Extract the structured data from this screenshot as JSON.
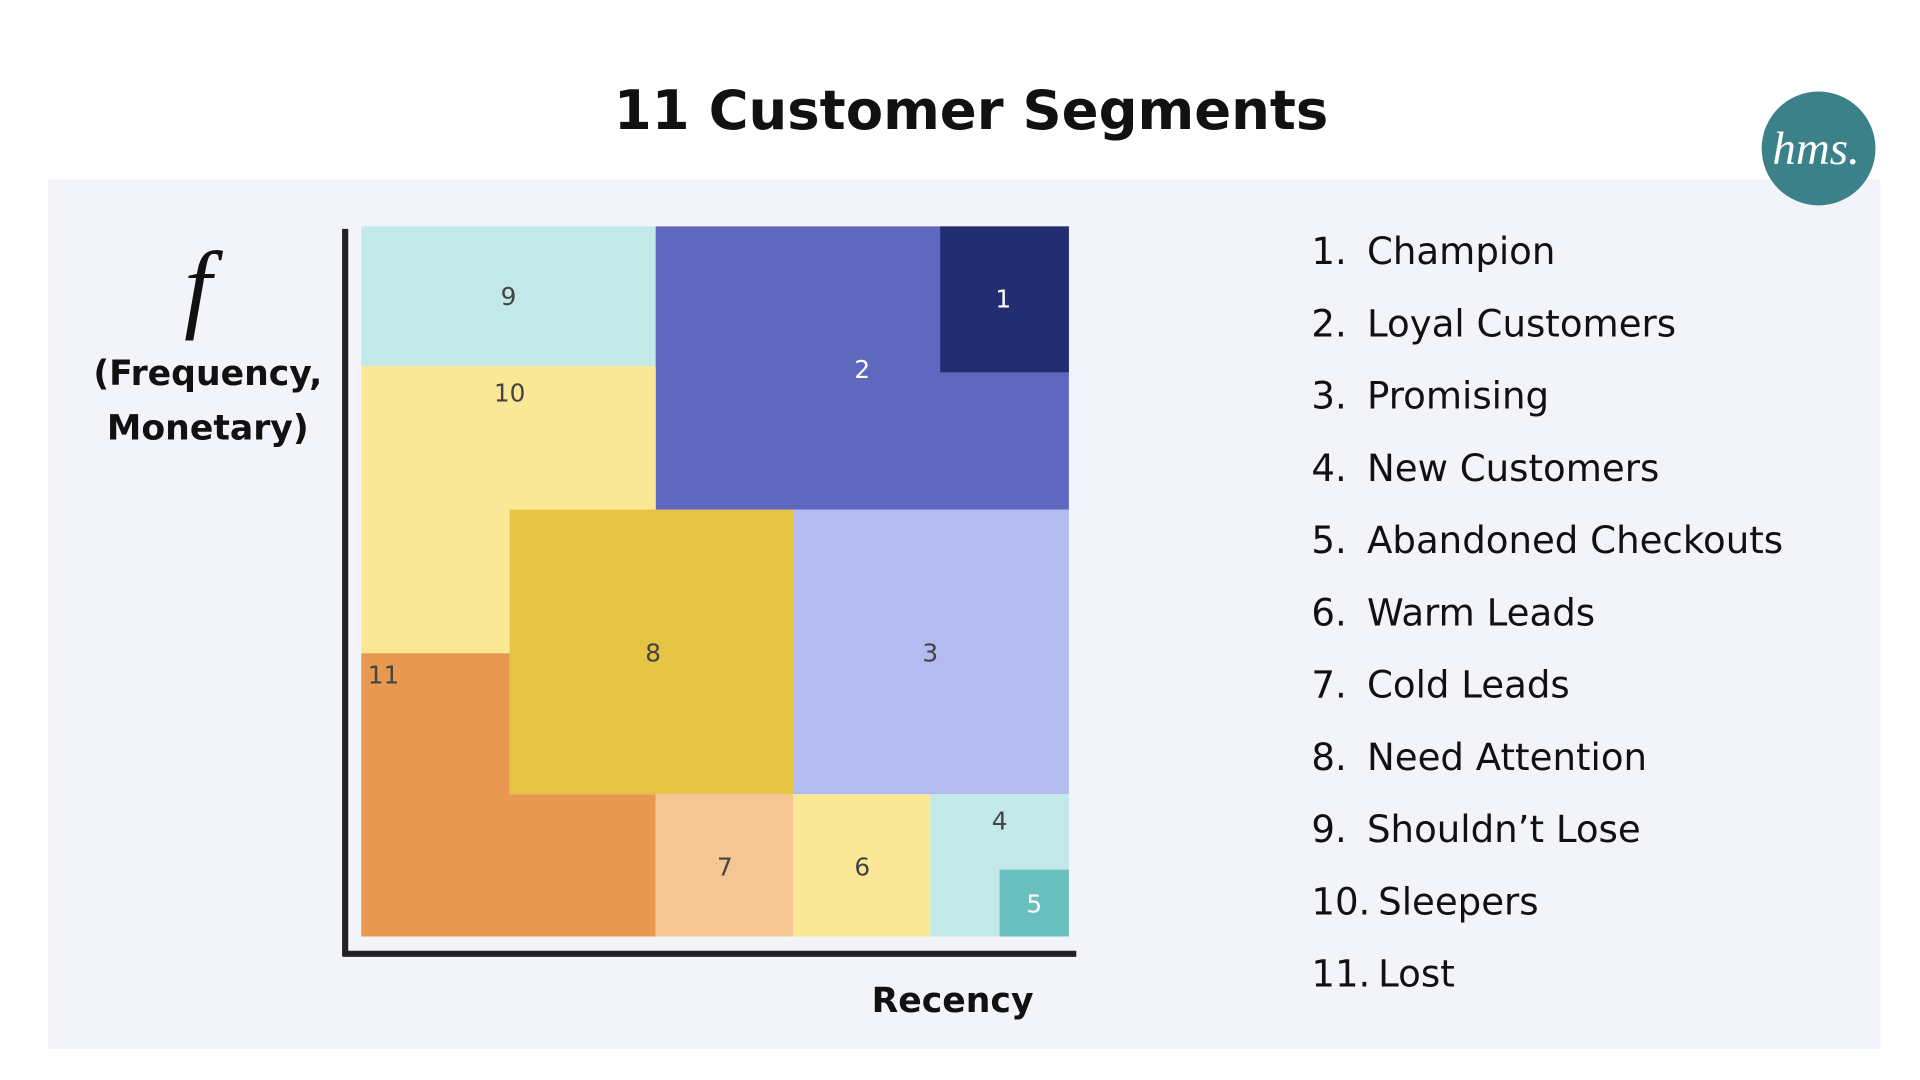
{
  "title": "11 Customer Segments",
  "logo": "hms.",
  "y_axis": {
    "symbol": "f",
    "line1": "(Frequency,",
    "line2": "Monetary)"
  },
  "x_axis": {
    "label": "Recency"
  },
  "blocks": [
    {
      "label": "9"
    },
    {
      "label": "2"
    },
    {
      "label": "1"
    },
    {
      "label": "10"
    },
    {
      "label": "8"
    },
    {
      "label": "3"
    },
    {
      "label": "11"
    },
    {
      "label": "7"
    },
    {
      "label": "6"
    },
    {
      "label": "4"
    },
    {
      "label": "5"
    }
  ],
  "legend": [
    {
      "index": "1.",
      "label": "Champion"
    },
    {
      "index": "2.",
      "label": "Loyal Customers"
    },
    {
      "index": "3.",
      "label": "Promising"
    },
    {
      "index": "4.",
      "label": "New Customers"
    },
    {
      "index": "5.",
      "label": "Abandoned Checkouts"
    },
    {
      "index": "6.",
      "label": "Warm Leads"
    },
    {
      "index": "7.",
      "label": "Cold Leads"
    },
    {
      "index": "8.",
      "label": "Need Attention"
    },
    {
      "index": "9.",
      "label": "Shouldn’t Lose"
    },
    {
      "index": "10.",
      "label": "Sleepers"
    },
    {
      "index": "11.",
      "label": "Lost"
    }
  ]
}
